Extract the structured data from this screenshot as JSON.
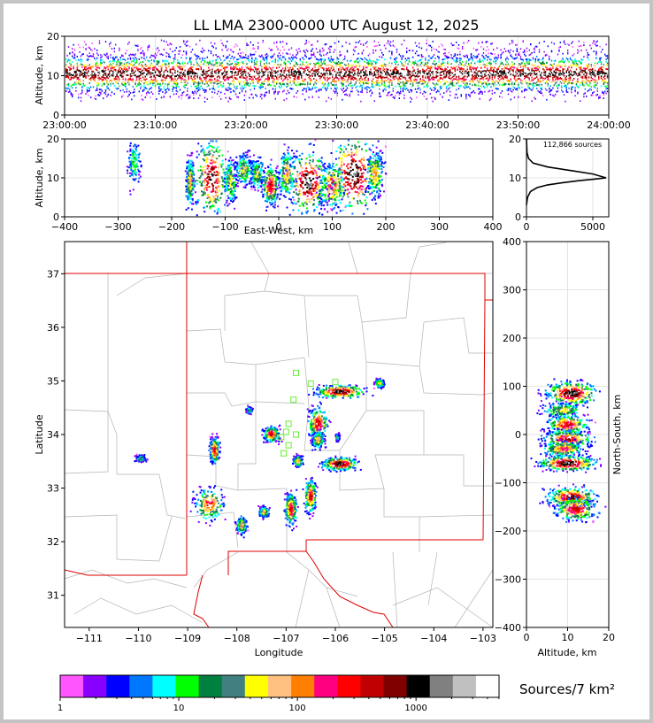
{
  "title": "LL LMA 2300-0000 UTC August 12, 2025",
  "panels": {
    "time_height": {
      "ylabel": "Altitude, km",
      "yticks": [
        "0",
        "10",
        "20"
      ],
      "xticks": [
        "23:00:00",
        "23:10:00",
        "23:20:00",
        "23:30:00",
        "23:40:00",
        "23:50:00",
        "24:00:00"
      ]
    },
    "ew_height": {
      "ylabel": "Altitude, km",
      "xlabel": "East-West, km",
      "yticks": [
        "0",
        "10",
        "20"
      ],
      "xticks": [
        "−400",
        "−300",
        "−200",
        "−100",
        "0",
        "100",
        "200",
        "300",
        "400"
      ]
    },
    "histogram": {
      "annotation": "112,866 sources",
      "xticks": [
        "0",
        "5000"
      ],
      "yticks": [
        "0",
        "10",
        "20"
      ]
    },
    "map": {
      "xlabel": "Longitude",
      "ylabel": "Latitude",
      "xticks": [
        "−111",
        "−110",
        "−109",
        "−108",
        "−107",
        "−106",
        "−105",
        "−104",
        "−103"
      ],
      "yticks": [
        "31",
        "32",
        "33",
        "34",
        "35",
        "36",
        "37"
      ]
    },
    "ns_height": {
      "xlabel": "Altitude, km",
      "ylabel": "North-South, km",
      "xticks": [
        "0",
        "10",
        "20"
      ],
      "yticks": [
        "−400",
        "−300",
        "−200",
        "−100",
        "0",
        "100",
        "200",
        "300",
        "400"
      ]
    }
  },
  "colorbar": {
    "label": "Sources/7 km²",
    "ticks": [
      "1",
      "10",
      "100",
      "1000"
    ],
    "colors": [
      "#ff55ff",
      "#8800ff",
      "#0000ff",
      "#0077ff",
      "#00ffff",
      "#00ff00",
      "#008040",
      "#408080",
      "#ffff00",
      "#ffc080",
      "#ff8000",
      "#ff0080",
      "#ff0000",
      "#c00000",
      "#800000",
      "#000000",
      "#808080",
      "#c0c0c0",
      "#ffffff"
    ]
  },
  "chart_data": [
    {
      "type": "heatmap",
      "panel": "time-height",
      "title": "LL LMA 2300-0000 UTC August 12, 2025",
      "ylabel": "Altitude, km",
      "xlim": [
        "23:00:00",
        "24:00:00"
      ],
      "ylim": [
        0,
        20
      ],
      "grid": true,
      "band": {
        "core_altitude_km": [
          8,
          13
        ],
        "extent_km": [
          2,
          20
        ]
      }
    },
    {
      "type": "heatmap",
      "panel": "east-west vs altitude",
      "xlabel": "East-West, km",
      "ylabel": "Altitude, km",
      "xlim": [
        -400,
        400
      ],
      "ylim": [
        0,
        20
      ],
      "grid": true,
      "clusters": [
        {
          "x": -270,
          "z": 14,
          "sx": 6,
          "sz": 3,
          "density": 0.3
        },
        {
          "x": -165,
          "z": 9,
          "sx": 4,
          "sz": 3,
          "density": 0.6
        },
        {
          "x": -125,
          "z": 10,
          "sx": 15,
          "sz": 5,
          "density": 0.9
        },
        {
          "x": -90,
          "z": 9,
          "sx": 6,
          "sz": 3,
          "density": 0.5
        },
        {
          "x": -65,
          "z": 12,
          "sx": 8,
          "sz": 2,
          "density": 0.5
        },
        {
          "x": -40,
          "z": 11,
          "sx": 6,
          "sz": 2,
          "density": 0.5
        },
        {
          "x": -15,
          "z": 8,
          "sx": 8,
          "sz": 2.5,
          "density": 0.8
        },
        {
          "x": 15,
          "z": 11,
          "sx": 8,
          "sz": 3,
          "density": 0.6
        },
        {
          "x": 55,
          "z": 9,
          "sx": 18,
          "sz": 4,
          "density": 1.0
        },
        {
          "x": 100,
          "z": 8,
          "sx": 12,
          "sz": 3,
          "density": 0.7
        },
        {
          "x": 140,
          "z": 11,
          "sx": 22,
          "sz": 5,
          "density": 1.0
        },
        {
          "x": 180,
          "z": 11,
          "sx": 8,
          "sz": 3,
          "density": 0.6
        }
      ]
    },
    {
      "type": "line",
      "panel": "altitude histogram",
      "xlim": [
        0,
        6200
      ],
      "ylim": [
        0,
        20
      ],
      "total_sources": 112866,
      "x": [
        0,
        80,
        300,
        800,
        1600,
        2800,
        4000,
        5200,
        6000,
        5000,
        3500,
        1600,
        500,
        150,
        40,
        0
      ],
      "y": [
        3,
        5,
        6.5,
        7.5,
        8.2,
        8.8,
        9.3,
        9.7,
        10,
        11,
        11.8,
        12.8,
        13.8,
        15,
        16.5,
        20
      ]
    },
    {
      "type": "heatmap",
      "panel": "plan view map",
      "xlabel": "Longitude",
      "ylabel": "Latitude",
      "xlim": [
        -111.5,
        -102.8
      ],
      "ylim": [
        30.4,
        37.6
      ],
      "clusters": [
        {
          "lon": -105.9,
          "lat": 34.8,
          "slon": 0.25,
          "slat": 0.06,
          "density": 1.0
        },
        {
          "lon": -105.1,
          "lat": 34.95,
          "slon": 0.05,
          "slat": 0.04,
          "density": 0.5
        },
        {
          "lon": -106.35,
          "lat": 34.2,
          "slon": 0.1,
          "slat": 0.15,
          "density": 0.8
        },
        {
          "lon": -106.35,
          "lat": 33.9,
          "slon": 0.06,
          "slat": 0.08,
          "density": 0.6
        },
        {
          "lon": -105.9,
          "lat": 33.45,
          "slon": 0.18,
          "slat": 0.06,
          "density": 1.0
        },
        {
          "lon": -106.75,
          "lat": 33.5,
          "slon": 0.05,
          "slat": 0.05,
          "density": 0.6
        },
        {
          "lon": -107.3,
          "lat": 34.0,
          "slon": 0.08,
          "slat": 0.07,
          "density": 0.8
        },
        {
          "lon": -108.45,
          "lat": 33.7,
          "slon": 0.05,
          "slat": 0.12,
          "density": 0.8
        },
        {
          "lon": -107.75,
          "lat": 34.45,
          "slon": 0.03,
          "slat": 0.03,
          "density": 0.4
        },
        {
          "lon": -108.55,
          "lat": 32.7,
          "slon": 0.15,
          "slat": 0.15,
          "density": 0.7
        },
        {
          "lon": -107.9,
          "lat": 32.3,
          "slon": 0.05,
          "slat": 0.08,
          "density": 0.6
        },
        {
          "lon": -107.45,
          "lat": 32.55,
          "slon": 0.05,
          "slat": 0.05,
          "density": 0.6
        },
        {
          "lon": -106.9,
          "lat": 32.6,
          "slon": 0.06,
          "slat": 0.15,
          "density": 0.8
        },
        {
          "lon": -106.5,
          "lat": 32.85,
          "slon": 0.06,
          "slat": 0.15,
          "density": 0.8
        },
        {
          "lon": -109.95,
          "lat": 33.55,
          "slon": 0.05,
          "slat": 0.03,
          "density": 0.4
        },
        {
          "lon": -105.95,
          "lat": 33.95,
          "slon": 0.02,
          "slat": 0.03,
          "density": 0.3
        }
      ],
      "stations": [
        [
          -106.8,
          35.15
        ],
        [
          -106.5,
          34.95
        ],
        [
          -106.0,
          34.98
        ],
        [
          -106.85,
          34.65
        ],
        [
          -106.95,
          34.2
        ],
        [
          -107.0,
          34.05
        ],
        [
          -106.8,
          34.0
        ],
        [
          -107.1,
          33.95
        ],
        [
          -106.95,
          33.8
        ],
        [
          -107.05,
          33.65
        ]
      ]
    },
    {
      "type": "heatmap",
      "panel": "altitude vs north-south",
      "xlabel": "Altitude, km",
      "ylabel": "North-South, km",
      "xlim": [
        0,
        20
      ],
      "ylim": [
        -400,
        400
      ],
      "grid": true,
      "clusters": [
        {
          "z": 11,
          "y": 85,
          "sz": 3,
          "sy": 12,
          "density": 1.0
        },
        {
          "z": 9,
          "y": 50,
          "sz": 2.5,
          "sy": 8,
          "density": 0.5
        },
        {
          "z": 10,
          "y": 20,
          "sz": 2.5,
          "sy": 10,
          "density": 0.8
        },
        {
          "z": 10,
          "y": -10,
          "sz": 3,
          "sy": 10,
          "density": 0.8
        },
        {
          "z": 9,
          "y": -30,
          "sz": 2.5,
          "sy": 8,
          "density": 0.7
        },
        {
          "z": 10,
          "y": -60,
          "sz": 3.5,
          "sy": 8,
          "density": 1.0
        },
        {
          "z": 11,
          "y": -130,
          "sz": 3,
          "sy": 10,
          "density": 0.9
        },
        {
          "z": 12,
          "y": -155,
          "sz": 2.5,
          "sy": 12,
          "density": 0.8
        }
      ]
    }
  ]
}
